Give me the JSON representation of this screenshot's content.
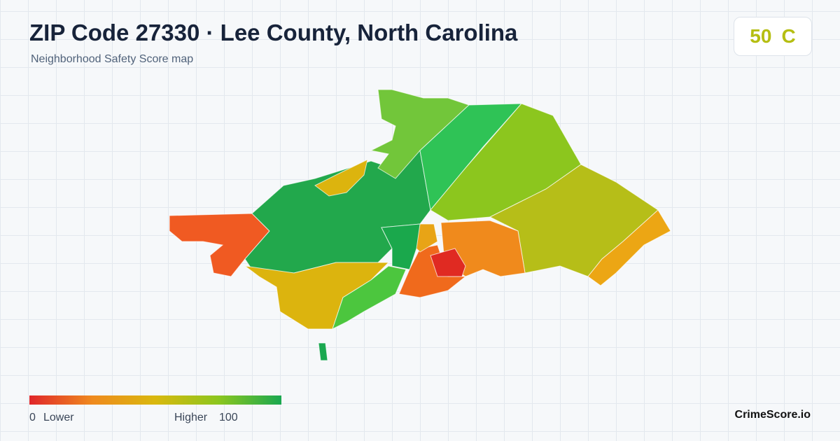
{
  "header": {
    "title": "ZIP Code 27330 · Lee County, North Carolina",
    "subtitle": "Neighborhood Safety Score map"
  },
  "score": {
    "value": "50",
    "grade": "C"
  },
  "legend": {
    "min": "0",
    "min_label": "Lower",
    "max_label": "Higher",
    "max": "100",
    "colors": [
      "#e0262a",
      "#ef8a1e",
      "#d9b80e",
      "#8cc61e",
      "#1aa850"
    ]
  },
  "brand": "CrimeScore.io"
}
